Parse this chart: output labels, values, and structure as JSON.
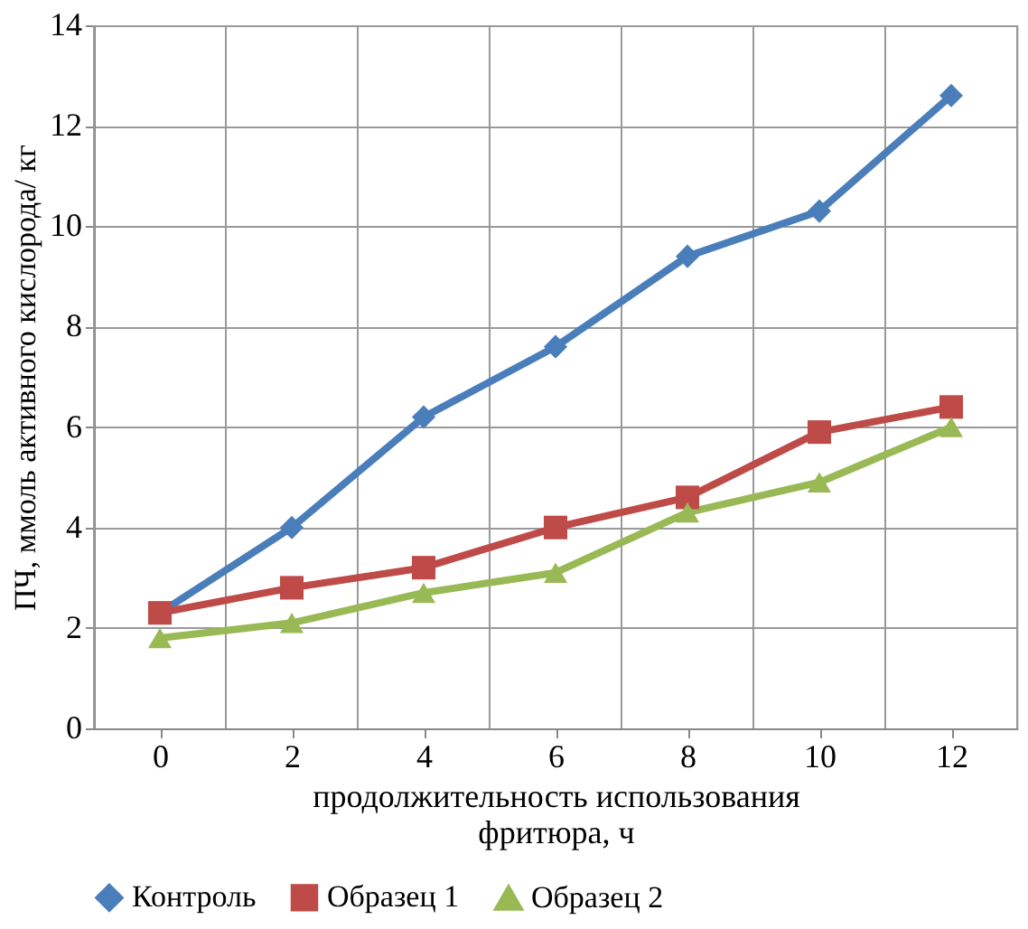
{
  "chart_data": {
    "type": "line",
    "categories": [
      "0",
      "2",
      "4",
      "6",
      "8",
      "10",
      "12"
    ],
    "xlabel": "продолжительность использования\nфритюра, ч",
    "ylabel": "ПЧ, ммоль активного кислорода/ кг",
    "ylim": [
      0,
      14
    ],
    "yticks": [
      0,
      2,
      4,
      6,
      8,
      10,
      12,
      14
    ],
    "grid": true,
    "legend": "bottom",
    "line_style": "solid",
    "series": [
      {
        "name": "Контроль",
        "color": "#4a7ebb",
        "marker": "diamond",
        "values": [
          2.3,
          4.0,
          6.2,
          7.6,
          9.4,
          10.3,
          12.6
        ]
      },
      {
        "name": "Образец 1",
        "color": "#be4b48",
        "marker": "square",
        "values": [
          2.3,
          2.8,
          3.2,
          4.0,
          4.6,
          5.9,
          6.4
        ]
      },
      {
        "name": "Образец 2",
        "color": "#98b954",
        "marker": "triangle",
        "values": [
          1.8,
          2.1,
          2.7,
          3.1,
          4.3,
          4.9,
          6.0
        ]
      }
    ]
  }
}
